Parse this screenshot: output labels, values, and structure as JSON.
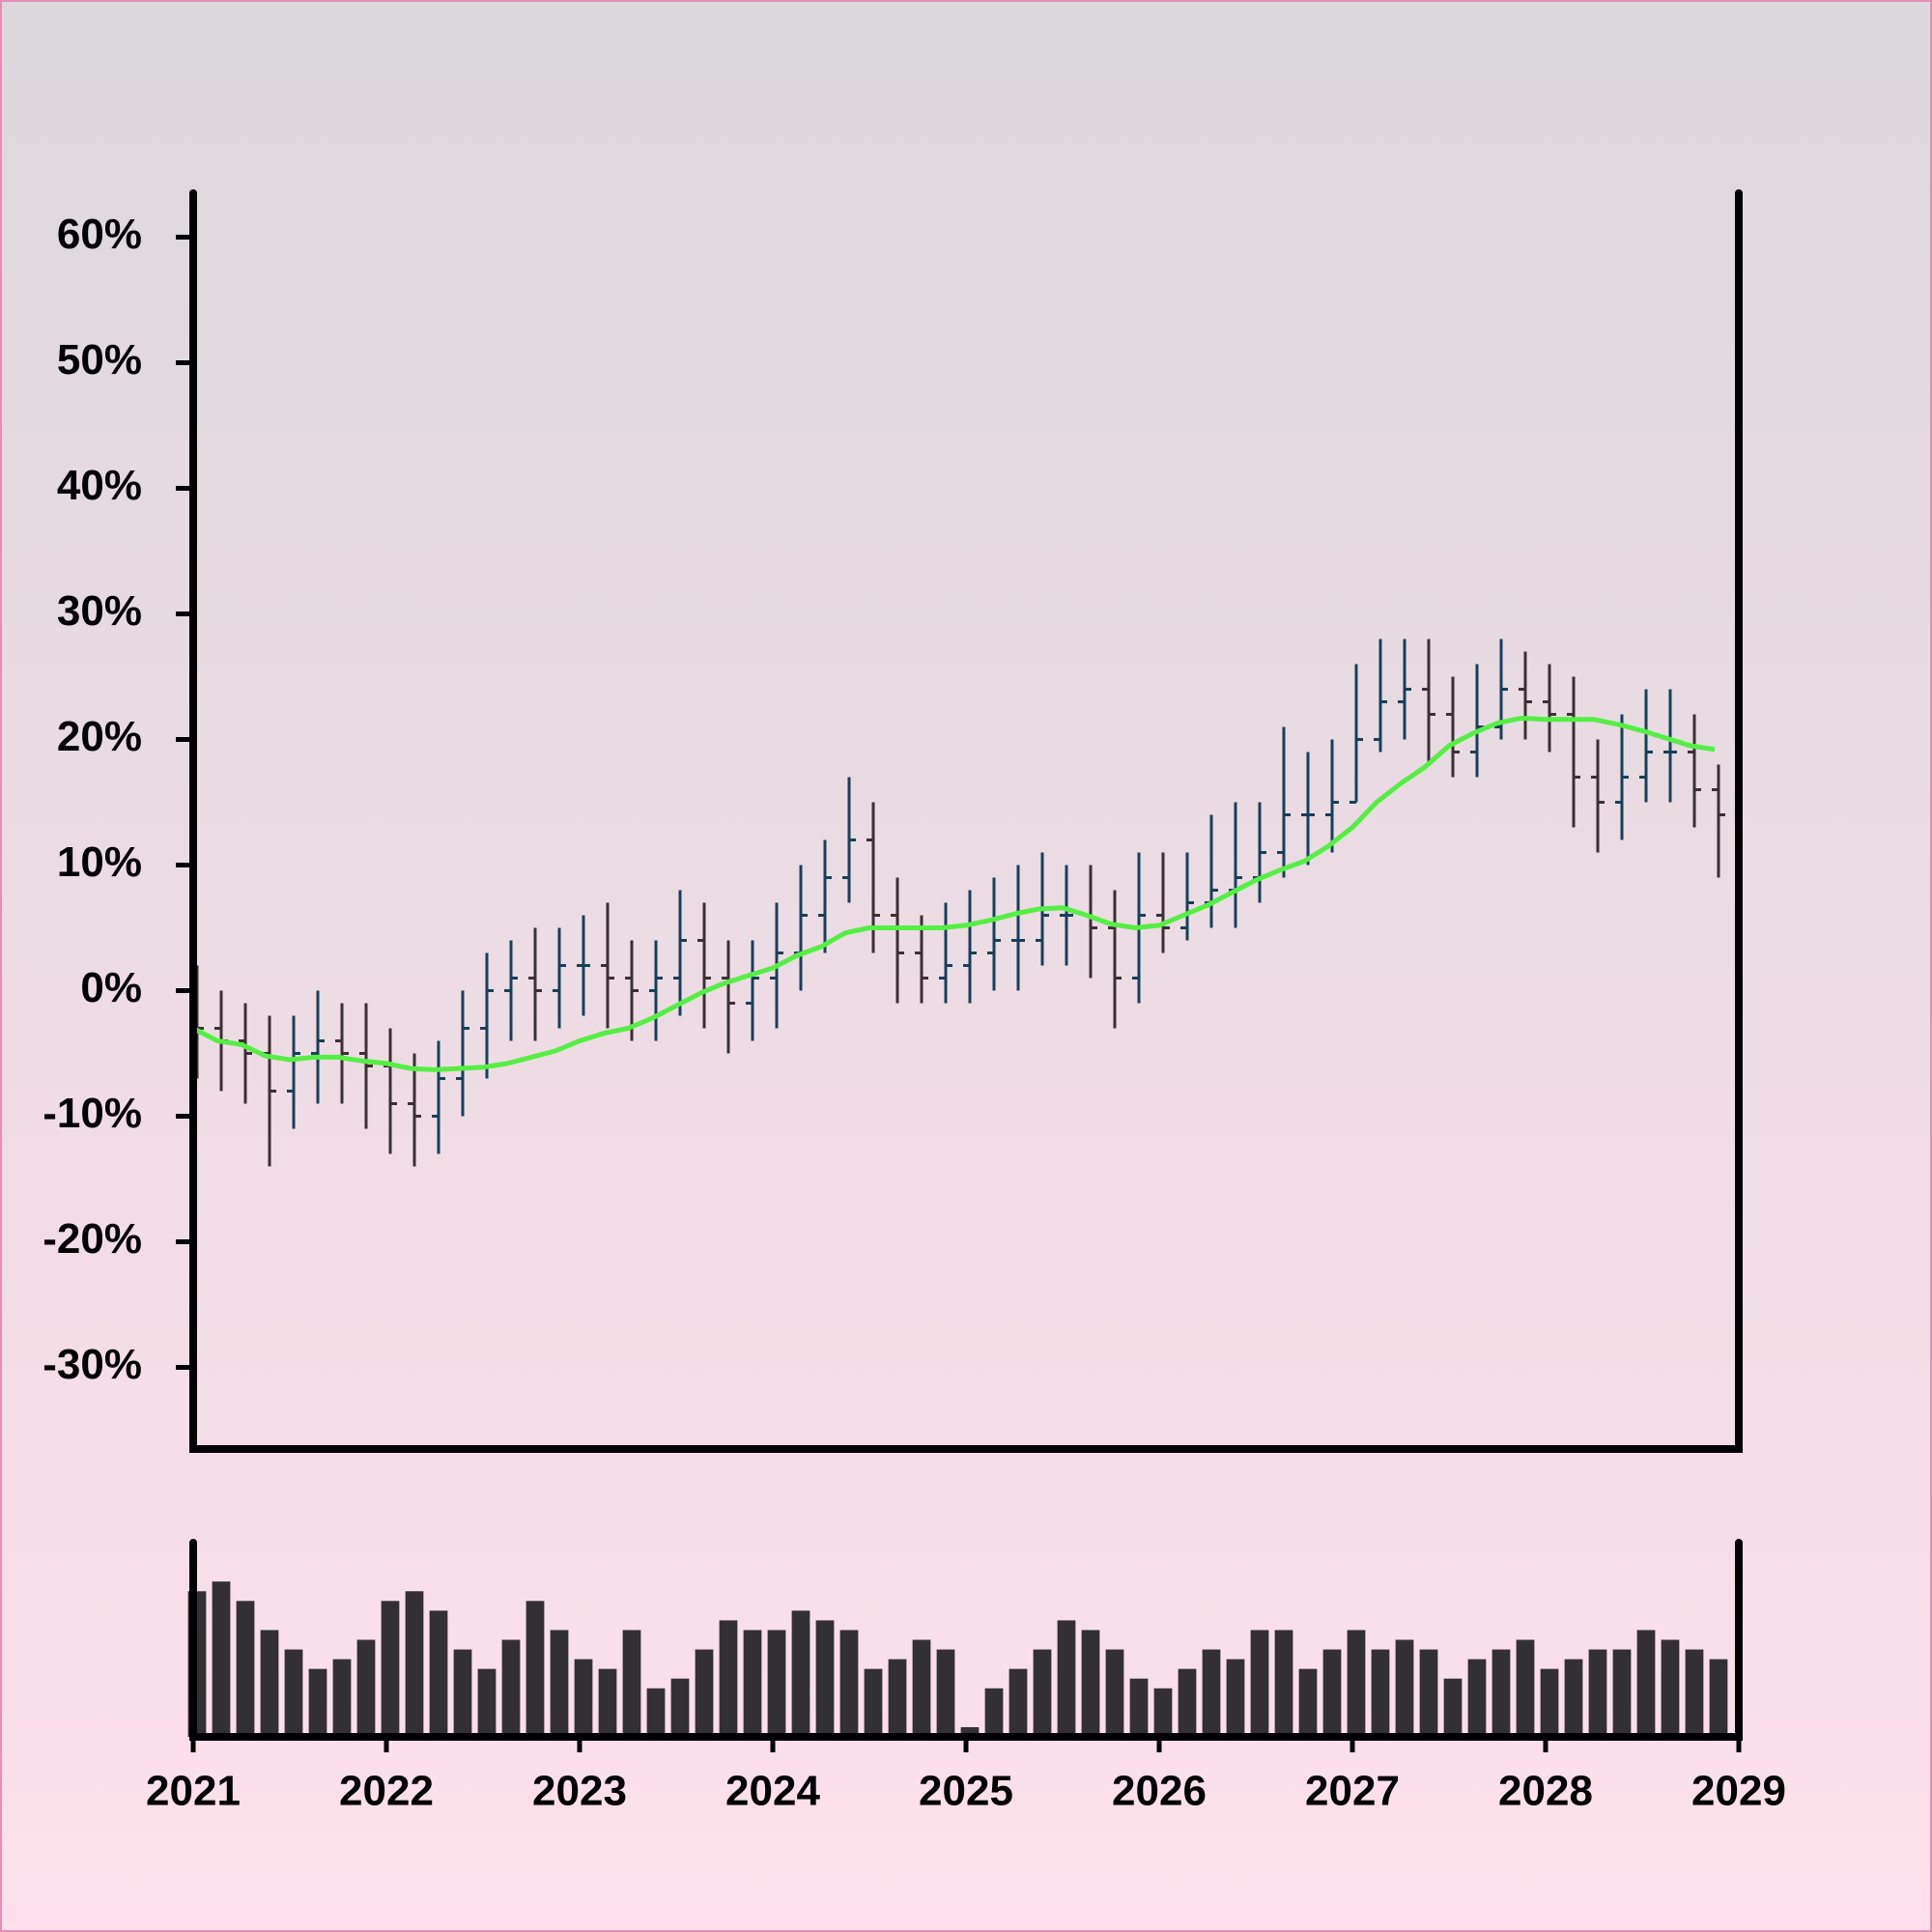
{
  "chart_data": [
    {
      "type": "ohlc",
      "x": [
        2021,
        2021.125,
        2021.25,
        2021.375,
        2021.5,
        2021.625,
        2021.75,
        2021.875,
        2022,
        2022.125,
        2022.25,
        2022.375,
        2022.5,
        2022.625,
        2022.75,
        2022.875,
        2023,
        2023.125,
        2023.25,
        2023.375,
        2023.5,
        2023.625,
        2023.75,
        2023.875,
        2024,
        2024.125,
        2024.25,
        2024.375,
        2024.5,
        2024.625,
        2024.75,
        2024.875,
        2025,
        2025.125,
        2025.25,
        2025.375,
        2025.5,
        2025.625,
        2025.75,
        2025.875,
        2026,
        2026.125,
        2026.25,
        2026.375,
        2026.5,
        2026.625,
        2026.75,
        2026.875,
        2027,
        2027.125,
        2027.25,
        2027.375,
        2027.5,
        2027.625,
        2027.75,
        2027.875,
        2028,
        2028.125,
        2028.25,
        2028.375,
        2028.5,
        2028.625,
        2028.75,
        2028.875
      ],
      "open": [
        -1,
        -3,
        -4,
        -5,
        -8,
        -5,
        -4,
        -5,
        -6,
        -9,
        -10,
        -7,
        -3,
        0,
        1,
        0,
        2,
        2,
        1,
        0,
        1,
        4,
        1,
        -1,
        1,
        3,
        6,
        9,
        12,
        6,
        3,
        1,
        2,
        3,
        4,
        4,
        6,
        6,
        5,
        1,
        6,
        5,
        7,
        8,
        9,
        11,
        14,
        14,
        15,
        20,
        23,
        24,
        22,
        19,
        21,
        24,
        23,
        22,
        17,
        15,
        17,
        19,
        19,
        16
      ],
      "high": [
        2,
        0,
        -1,
        -2,
        -2,
        0,
        -1,
        -1,
        -3,
        -5,
        -4,
        0,
        3,
        4,
        5,
        5,
        6,
        7,
        4,
        4,
        8,
        7,
        4,
        4,
        7,
        10,
        12,
        17,
        15,
        9,
        6,
        7,
        8,
        9,
        10,
        11,
        10,
        10,
        8,
        11,
        11,
        11,
        14,
        15,
        15,
        21,
        19,
        20,
        26,
        28,
        28,
        28,
        25,
        26,
        28,
        27,
        26,
        25,
        20,
        22,
        24,
        24,
        22,
        18
      ],
      "low": [
        -7,
        -8,
        -9,
        -14,
        -11,
        -9,
        -9,
        -11,
        -13,
        -14,
        -13,
        -10,
        -7,
        -4,
        -4,
        -3,
        -2,
        -3,
        -4,
        -4,
        -2,
        -3,
        -5,
        -4,
        -3,
        0,
        3,
        7,
        3,
        -1,
        -1,
        -1,
        -1,
        0,
        0,
        2,
        2,
        1,
        -3,
        -1,
        3,
        4,
        5,
        5,
        7,
        9,
        10,
        11,
        15,
        19,
        20,
        18,
        17,
        17,
        20,
        20,
        19,
        13,
        11,
        12,
        15,
        15,
        13,
        9
      ],
      "close": [
        -3,
        -4,
        -5,
        -8,
        -5,
        -4,
        -5,
        -6,
        -9,
        -10,
        -7,
        -3,
        0,
        1,
        0,
        2,
        2,
        1,
        0,
        1,
        4,
        1,
        -1,
        1,
        3,
        6,
        9,
        12,
        6,
        3,
        1,
        2,
        3,
        4,
        4,
        6,
        6,
        5,
        1,
        6,
        5,
        7,
        8,
        9,
        11,
        14,
        14,
        15,
        20,
        23,
        24,
        22,
        19,
        21,
        24,
        23,
        22,
        17,
        15,
        17,
        19,
        19,
        16,
        14
      ],
      "up_color": "#17405a",
      "down_color": "#3b3036",
      "ma": {
        "color": "#55ee44",
        "values": [
          -3,
          -4,
          -4.3,
          -5.2,
          -5.5,
          -5.3,
          -5.3,
          -5.6,
          -5.8,
          -6.2,
          -6.3,
          -6.2,
          -6.1,
          -5.8,
          -5.3,
          -4.8,
          -4,
          -3.4,
          -3,
          -2.2,
          -1.2,
          -0.2,
          0.6,
          1.2,
          1.8,
          2.8,
          3.5,
          4.6,
          5,
          5,
          5,
          5,
          5.2,
          5.6,
          6.1,
          6.5,
          6.6,
          6,
          5.3,
          5,
          5.2,
          6,
          6.8,
          7.8,
          8.8,
          9.6,
          10.3,
          11.5,
          13,
          15,
          16.5,
          17.8,
          19.5,
          20.5,
          21.3,
          21.7,
          21.6,
          21.6,
          21.6,
          21.2,
          20.7,
          20.1,
          19.5,
          19.2
        ]
      },
      "xlim": [
        2021,
        2029
      ],
      "ylim": [
        -36.5,
        63.5
      ],
      "yticks": [
        {
          "value": -30,
          "label": "-30%"
        },
        {
          "value": -20,
          "label": "-20%"
        },
        {
          "value": -10,
          "label": "-10%"
        },
        {
          "value": 0,
          "label": "0%"
        },
        {
          "value": 10,
          "label": "10%"
        },
        {
          "value": 20,
          "label": "20%"
        },
        {
          "value": 30,
          "label": "30%"
        },
        {
          "value": 40,
          "label": "40%"
        },
        {
          "value": 50,
          "label": "50%"
        },
        {
          "value": 60,
          "label": "60%"
        }
      ]
    },
    {
      "type": "bar",
      "values": [
        75,
        80,
        70,
        55,
        45,
        35,
        40,
        50,
        70,
        75,
        65,
        45,
        35,
        50,
        70,
        55,
        40,
        35,
        55,
        25,
        30,
        45,
        60,
        55,
        55,
        65,
        60,
        55,
        35,
        40,
        50,
        45,
        5,
        25,
        35,
        45,
        60,
        55,
        45,
        30,
        25,
        35,
        45,
        40,
        55,
        55,
        35,
        45,
        55,
        45,
        50,
        45,
        30,
        40,
        45,
        50,
        35,
        40,
        45,
        45,
        55,
        50,
        45,
        40
      ],
      "color": "#333033",
      "xlim": [
        2021,
        2029
      ],
      "ylim": [
        0,
        100
      ],
      "xticks": [
        2021,
        2022,
        2023,
        2024,
        2025,
        2026,
        2027,
        2028,
        2029
      ]
    }
  ]
}
